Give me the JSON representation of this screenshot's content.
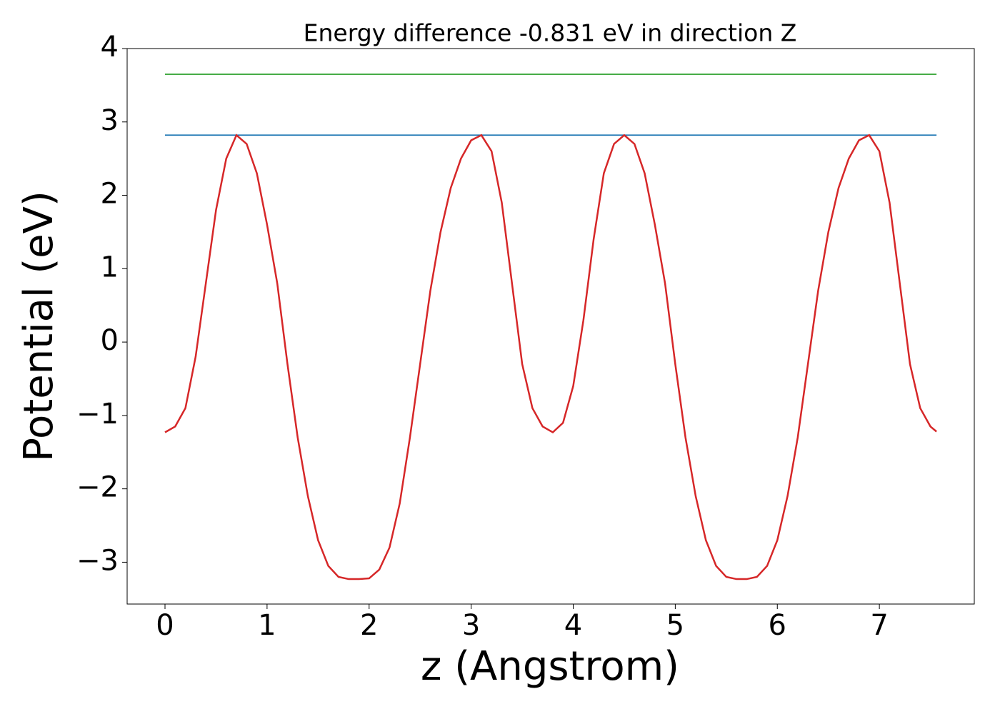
{
  "chart_data": {
    "type": "line",
    "title": "Energy difference -0.831 eV in direction Z",
    "xlabel": "z (Angstrom)",
    "ylabel": "Potential (eV)",
    "xlim": [
      -0.371,
      7.93
    ],
    "ylim": [
      -3.57,
      4.0
    ],
    "xticks": [
      0,
      1,
      2,
      3,
      4,
      5,
      6,
      7
    ],
    "yticks": [
      {
        "value": -3,
        "label": "−3"
      },
      {
        "value": -2,
        "label": "−2"
      },
      {
        "value": -1,
        "label": "−1"
      },
      0,
      1,
      2,
      3,
      4
    ],
    "grid": false,
    "series": [
      {
        "color": "#2ca02c",
        "x": [
          0,
          7.56
        ],
        "values": [
          3.65,
          3.65
        ]
      },
      {
        "color": "#1f77b4",
        "x": [
          0,
          7.56
        ],
        "values": [
          2.82,
          2.82
        ]
      },
      {
        "color": "#d62728",
        "x": [
          0,
          0.1,
          0.2,
          0.3,
          0.4,
          0.5,
          0.6,
          0.7,
          0.8,
          0.9,
          1.0,
          1.1,
          1.2,
          1.3,
          1.4,
          1.5,
          1.6,
          1.7,
          1.8,
          1.9,
          2.0,
          2.1,
          2.2,
          2.3,
          2.4,
          2.5,
          2.6,
          2.7,
          2.8,
          2.9,
          3.0,
          3.1,
          3.2,
          3.3,
          3.4,
          3.5,
          3.6,
          3.7,
          3.8,
          3.9,
          4.0,
          4.1,
          4.2,
          4.3,
          4.4,
          4.5,
          4.6,
          4.7,
          4.8,
          4.9,
          5.0,
          5.1,
          5.2,
          5.3,
          5.4,
          5.5,
          5.6,
          5.7,
          5.8,
          5.9,
          6.0,
          6.1,
          6.2,
          6.3,
          6.4,
          6.5,
          6.6,
          6.7,
          6.8,
          6.9,
          7.0,
          7.1,
          7.2,
          7.3,
          7.4,
          7.5,
          7.56
        ],
        "values": [
          -1.23,
          -1.15,
          -0.9,
          -0.2,
          0.8,
          1.8,
          2.5,
          2.82,
          2.7,
          2.3,
          1.6,
          0.8,
          -0.3,
          -1.3,
          -2.1,
          -2.7,
          -3.05,
          -3.2,
          -3.23,
          -3.23,
          -3.22,
          -3.1,
          -2.8,
          -2.2,
          -1.3,
          -0.3,
          0.7,
          1.5,
          2.1,
          2.5,
          2.75,
          2.82,
          2.6,
          1.9,
          0.8,
          -0.3,
          -0.9,
          -1.15,
          -1.23,
          -1.1,
          -0.6,
          0.3,
          1.4,
          2.3,
          2.7,
          2.82,
          2.7,
          2.3,
          1.6,
          0.8,
          -0.3,
          -1.3,
          -2.1,
          -2.7,
          -3.05,
          -3.2,
          -3.23,
          -3.23,
          -3.2,
          -3.05,
          -2.7,
          -2.1,
          -1.3,
          -0.3,
          0.7,
          1.5,
          2.1,
          2.5,
          2.75,
          2.82,
          2.6,
          1.9,
          0.8,
          -0.3,
          -0.9,
          -1.15,
          -1.22
        ]
      }
    ]
  }
}
